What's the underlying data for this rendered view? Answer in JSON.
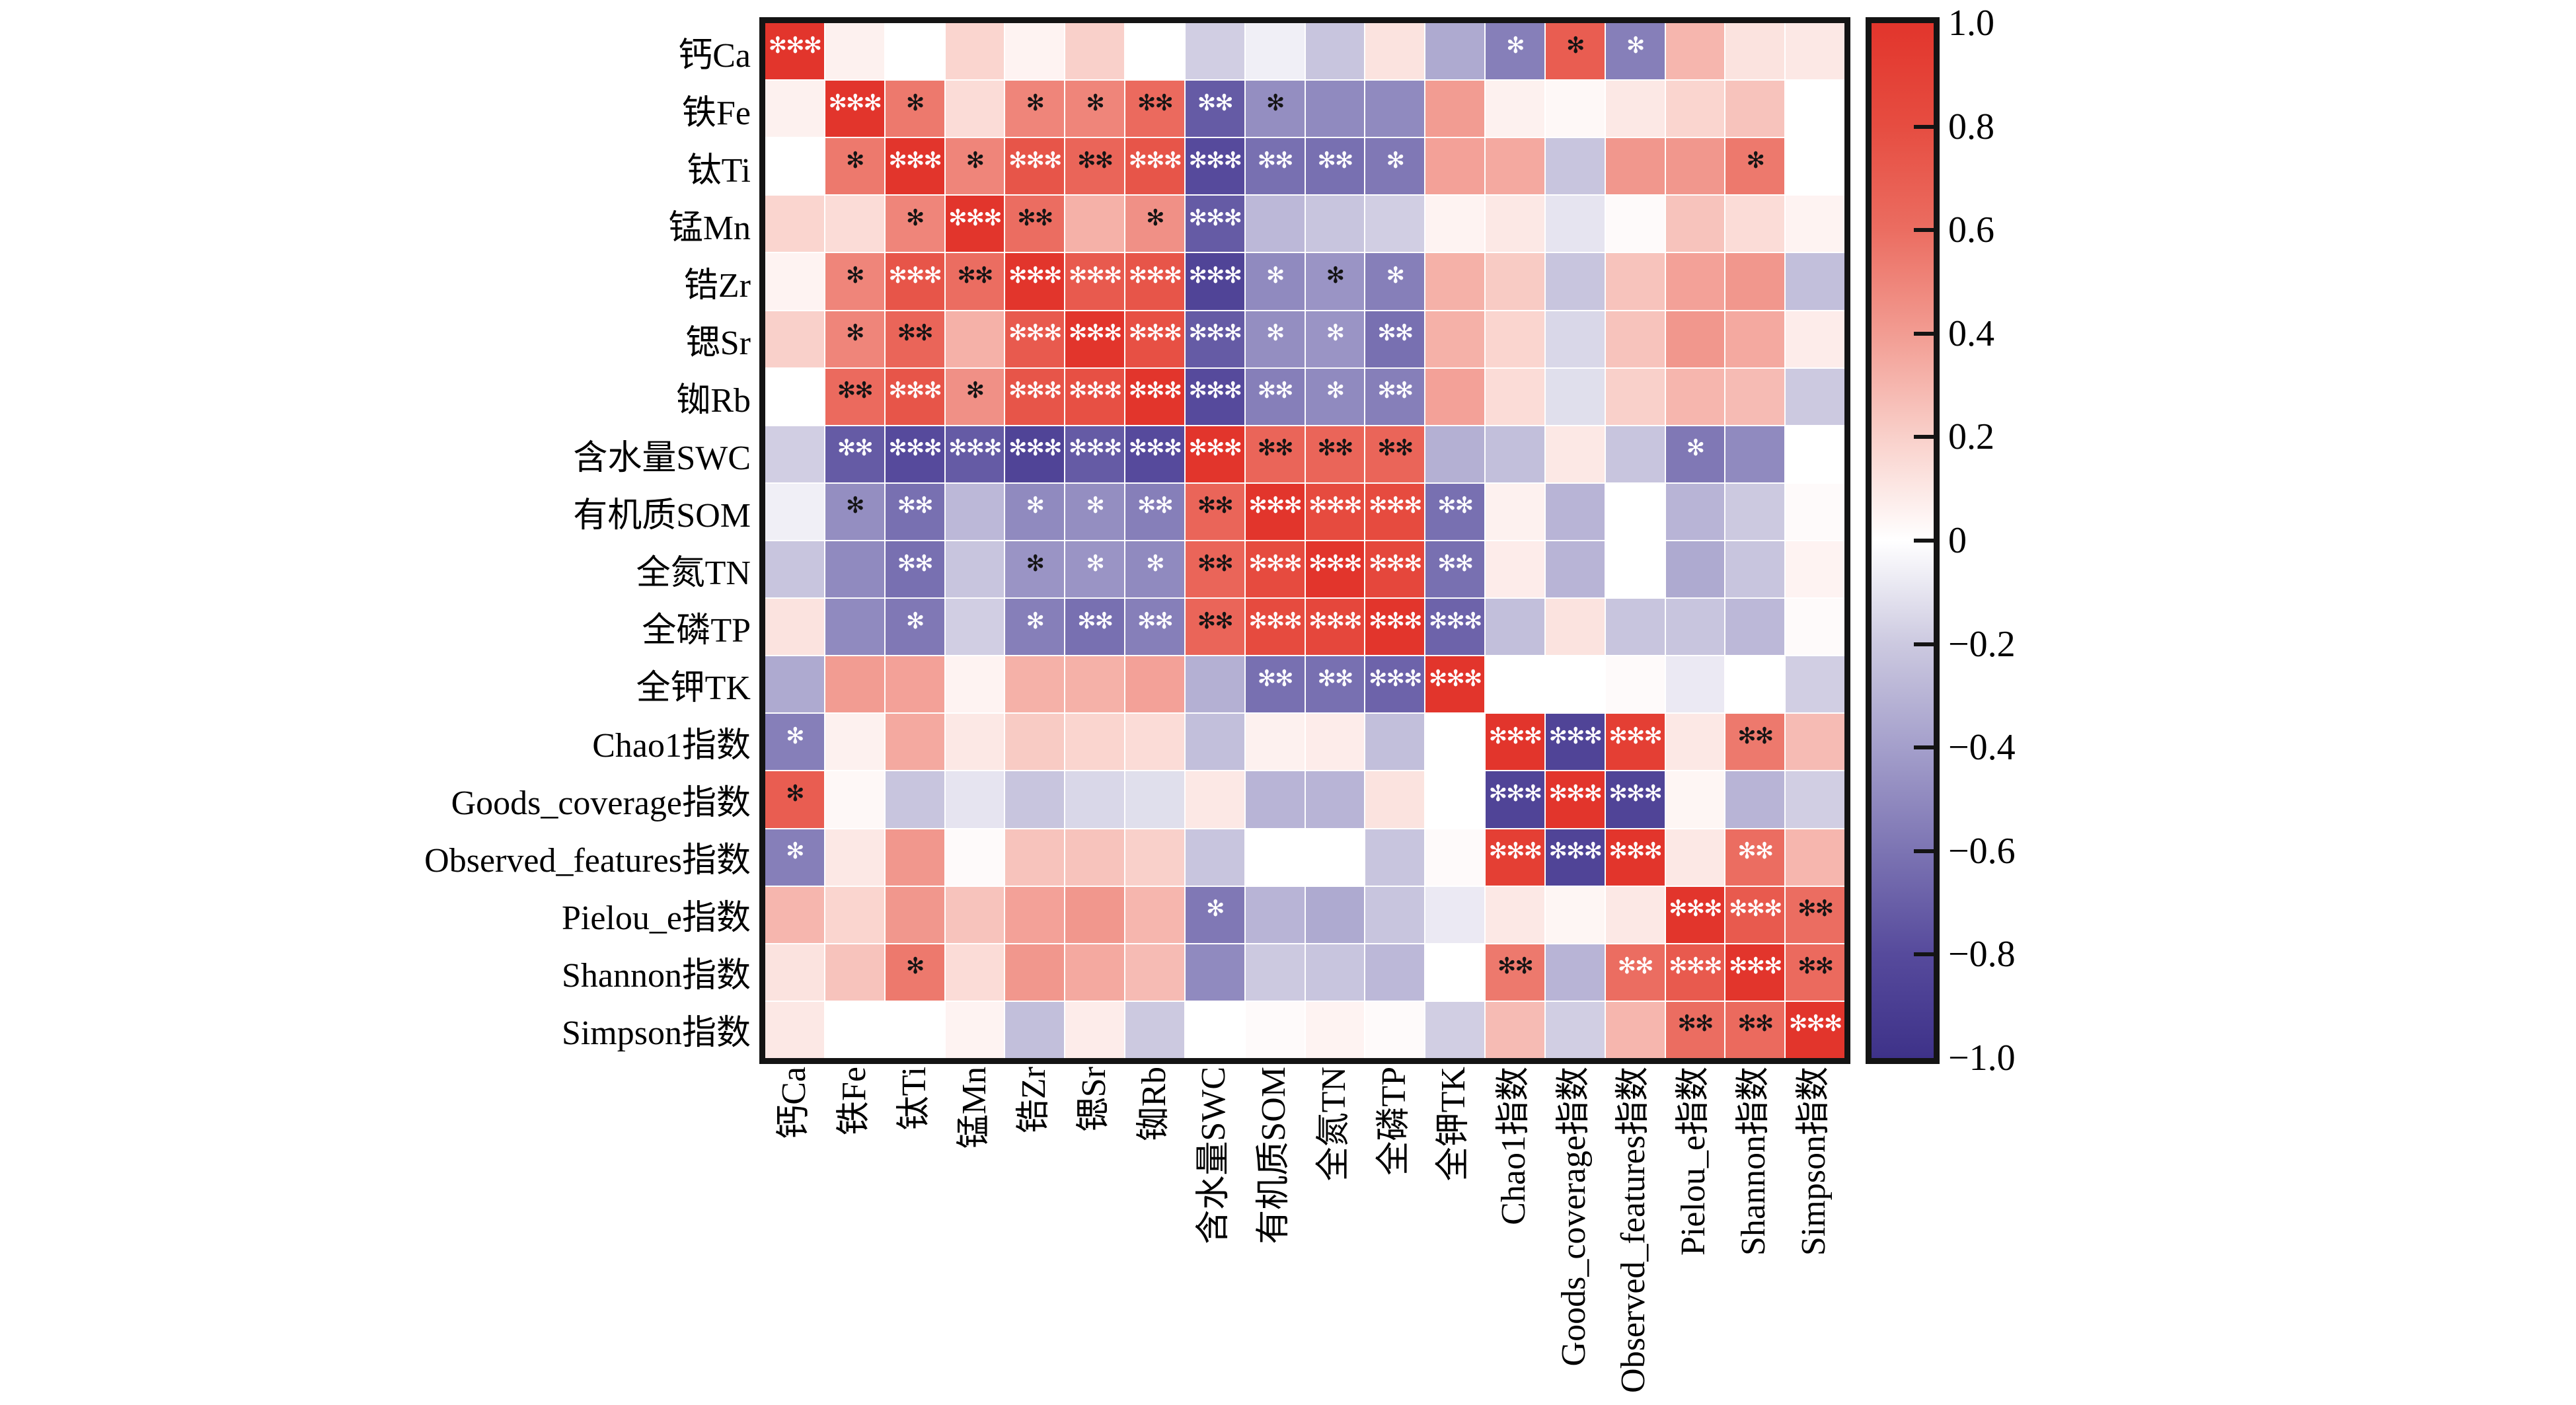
{
  "chart_data": {
    "type": "heatmap",
    "title": "",
    "legend_position": "right-colorbar",
    "grid": "white-lines",
    "star_glyph": "✻",
    "variables": [
      "钙Ca",
      "铁Fe",
      "钛Ti",
      "锰Mn",
      "锆Zr",
      "锶Sr",
      "铷Rb",
      "含水量SWC",
      "有机质SOM",
      "全氮TN",
      "全磷TP",
      "全钾TK",
      "Chao1指数",
      "Goods_coverage指数",
      "Observed_features指数",
      "Pielou_e指数",
      "Shannon指数",
      "Simpson指数"
    ],
    "matrix": [
      [
        1,
        0.06,
        0,
        0.18,
        0.05,
        0.2,
        0,
        -0.18,
        -0.06,
        -0.22,
        0.12,
        -0.35,
        -0.55,
        0.7,
        -0.55,
        0.3,
        0.12,
        0.1
      ],
      [
        0.06,
        1,
        0.55,
        0.15,
        0.5,
        0.5,
        0.62,
        -0.72,
        -0.48,
        -0.5,
        -0.5,
        0.4,
        0.06,
        0.03,
        0.1,
        0.18,
        0.25,
        0
      ],
      [
        0,
        0.55,
        1,
        0.5,
        0.75,
        0.65,
        0.75,
        -0.8,
        -0.62,
        -0.62,
        -0.58,
        0.38,
        0.35,
        -0.22,
        0.42,
        0.42,
        0.55,
        0
      ],
      [
        0.18,
        0.15,
        0.5,
        1,
        0.6,
        0.32,
        0.45,
        -0.72,
        -0.28,
        -0.22,
        -0.18,
        0.05,
        0.1,
        -0.1,
        0.02,
        0.25,
        0.15,
        0.05
      ],
      [
        0.05,
        0.5,
        0.75,
        0.6,
        1,
        0.72,
        0.75,
        -0.85,
        -0.5,
        -0.45,
        -0.55,
        0.32,
        0.22,
        -0.22,
        0.25,
        0.38,
        0.42,
        -0.25
      ],
      [
        0.2,
        0.5,
        0.65,
        0.32,
        0.72,
        1,
        0.78,
        -0.72,
        -0.48,
        -0.45,
        -0.62,
        0.32,
        0.18,
        -0.15,
        0.25,
        0.42,
        0.35,
        0.08
      ],
      [
        0,
        0.62,
        0.75,
        0.45,
        0.75,
        0.78,
        1,
        -0.8,
        -0.55,
        -0.5,
        -0.55,
        0.38,
        0.15,
        -0.12,
        0.2,
        0.3,
        0.28,
        -0.2
      ],
      [
        -0.18,
        -0.72,
        -0.8,
        -0.72,
        -0.85,
        -0.72,
        -0.8,
        1,
        0.65,
        0.65,
        0.65,
        -0.32,
        -0.25,
        0.1,
        -0.22,
        -0.58,
        -0.5,
        0
      ],
      [
        -0.06,
        -0.48,
        -0.62,
        -0.28,
        -0.5,
        -0.48,
        -0.55,
        0.65,
        1,
        0.82,
        0.82,
        -0.62,
        0.06,
        -0.3,
        0,
        -0.3,
        -0.2,
        0.02
      ],
      [
        -0.22,
        -0.5,
        -0.62,
        -0.22,
        -0.45,
        -0.45,
        -0.5,
        0.65,
        0.82,
        1,
        0.85,
        -0.62,
        0.08,
        -0.3,
        0,
        -0.35,
        -0.22,
        0.05
      ],
      [
        0.12,
        -0.5,
        -0.58,
        -0.18,
        -0.55,
        -0.62,
        -0.55,
        0.65,
        0.82,
        0.85,
        1,
        -0.68,
        -0.25,
        0.12,
        -0.22,
        -0.22,
        -0.28,
        0.02
      ],
      [
        -0.35,
        0.4,
        0.38,
        0.05,
        0.32,
        0.32,
        0.38,
        -0.32,
        -0.62,
        -0.62,
        -0.68,
        1,
        0,
        0,
        0.02,
        -0.08,
        0,
        -0.18
      ],
      [
        -0.55,
        0.06,
        0.35,
        0.1,
        0.22,
        0.18,
        0.15,
        -0.25,
        0.06,
        0.08,
        -0.25,
        0,
        1,
        -0.85,
        0.92,
        0.1,
        0.55,
        0.28
      ],
      [
        0.7,
        0.03,
        -0.22,
        -0.1,
        -0.22,
        -0.15,
        -0.12,
        0.1,
        -0.3,
        -0.3,
        0.12,
        0,
        -0.85,
        1,
        -0.85,
        0.04,
        -0.3,
        -0.18
      ],
      [
        -0.55,
        0.1,
        0.42,
        0.02,
        0.25,
        0.25,
        0.2,
        -0.22,
        0,
        0,
        -0.22,
        0.02,
        0.92,
        -0.85,
        1,
        0.1,
        0.6,
        0.3
      ],
      [
        0.3,
        0.18,
        0.42,
        0.25,
        0.38,
        0.42,
        0.3,
        -0.58,
        -0.3,
        -0.35,
        -0.22,
        -0.08,
        0.1,
        0.04,
        0.1,
        1,
        0.72,
        0.6
      ],
      [
        0.12,
        0.25,
        0.55,
        0.15,
        0.42,
        0.35,
        0.28,
        -0.5,
        -0.2,
        -0.22,
        -0.28,
        0,
        0.55,
        -0.3,
        0.6,
        0.72,
        1,
        0.62
      ],
      [
        0.1,
        0,
        0,
        0.05,
        -0.25,
        0.08,
        -0.2,
        0,
        0.02,
        0.05,
        0.02,
        -0.18,
        0.28,
        -0.18,
        0.3,
        0.6,
        0.62,
        1
      ]
    ],
    "significance": [
      [
        "3w",
        "",
        "",
        "",
        "",
        "",
        "",
        "",
        "",
        "",
        "",
        "",
        "1w",
        "1b",
        "1w",
        "",
        "",
        ""
      ],
      [
        "",
        "3w",
        "1b",
        "",
        "1b",
        "1b",
        "2b",
        "2w",
        "1b",
        "",
        "",
        "",
        "",
        "",
        "",
        "",
        "",
        ""
      ],
      [
        "",
        "1b",
        "3w",
        "1b",
        "3w",
        "2b",
        "3w",
        "3w",
        "2w",
        "2w",
        "1w",
        "",
        "",
        "",
        "",
        "",
        "1b",
        ""
      ],
      [
        "",
        "",
        "1b",
        "3w",
        "2b",
        "",
        "1b",
        "3w",
        "",
        "",
        "",
        "",
        "",
        "",
        "",
        "",
        "",
        ""
      ],
      [
        "",
        "1b",
        "3w",
        "2b",
        "3w",
        "3w",
        "3w",
        "3w",
        "1w",
        "1b",
        "1w",
        "",
        "",
        "",
        "",
        "",
        "",
        ""
      ],
      [
        "",
        "1b",
        "2b",
        "",
        "3w",
        "3w",
        "3w",
        "3w",
        "1w",
        "1w",
        "2w",
        "",
        "",
        "",
        "",
        "",
        "",
        ""
      ],
      [
        "",
        "2b",
        "3w",
        "1b",
        "3w",
        "3w",
        "3w",
        "3w",
        "2w",
        "1w",
        "2w",
        "",
        "",
        "",
        "",
        "",
        "",
        ""
      ],
      [
        "",
        "2w",
        "3w",
        "3w",
        "3w",
        "3w",
        "3w",
        "3w",
        "2b",
        "2b",
        "2b",
        "",
        "",
        "",
        "",
        "1w",
        "",
        ""
      ],
      [
        "",
        "1b",
        "2w",
        "",
        "1w",
        "1w",
        "2w",
        "2b",
        "3w",
        "3w",
        "3w",
        "2w",
        "",
        "",
        "",
        "",
        "",
        ""
      ],
      [
        "",
        "",
        "2w",
        "",
        "1b",
        "1w",
        "1w",
        "2b",
        "3w",
        "3w",
        "3w",
        "2w",
        "",
        "",
        "",
        "",
        "",
        ""
      ],
      [
        "",
        "",
        "1w",
        "",
        "1w",
        "2w",
        "2w",
        "2b",
        "3w",
        "3w",
        "3w",
        "3w",
        "",
        "",
        "",
        "",
        "",
        ""
      ],
      [
        "",
        "",
        "",
        "",
        "",
        "",
        "",
        "",
        "2w",
        "2w",
        "3w",
        "3w",
        "",
        "",
        "",
        "",
        "",
        ""
      ],
      [
        "1w",
        "",
        "",
        "",
        "",
        "",
        "",
        "",
        "",
        "",
        "",
        "",
        "3w",
        "3w",
        "3w",
        "",
        "2b",
        ""
      ],
      [
        "1b",
        "",
        "",
        "",
        "",
        "",
        "",
        "",
        "",
        "",
        "",
        "",
        "3w",
        "3w",
        "3w",
        "",
        "",
        ""
      ],
      [
        "1w",
        "",
        "",
        "",
        "",
        "",
        "",
        "",
        "",
        "",
        "",
        "",
        "3w",
        "3w",
        "3w",
        "",
        "2w",
        ""
      ],
      [
        "",
        "",
        "",
        "",
        "",
        "",
        "",
        "1w",
        "",
        "",
        "",
        "",
        "",
        "",
        "",
        "3w",
        "3w",
        "2b"
      ],
      [
        "",
        "",
        "1b",
        "",
        "",
        "",
        "",
        "",
        "",
        "",
        "",
        "",
        "2b",
        "",
        "2w",
        "3w",
        "3w",
        "2b"
      ],
      [
        "",
        "",
        "",
        "",
        "",
        "",
        "",
        "",
        "",
        "",
        "",
        "",
        "",
        "",
        "",
        "2b",
        "2b",
        "3w"
      ]
    ],
    "star_color_map": {
      "w": "#ffffff",
      "b": "#141414"
    },
    "colorbar": {
      "min": -1,
      "max": 1,
      "tick_labels": [
        "1.0",
        "0.8",
        "0.6",
        "0.4",
        "0.2",
        "0",
        "−0.2",
        "−0.4",
        "−0.6",
        "−0.8",
        "−1.0"
      ],
      "tick_values": [
        1,
        0.8,
        0.6,
        0.4,
        0.2,
        0,
        -0.2,
        -0.4,
        -0.6,
        -0.8,
        -1
      ],
      "gradient": [
        {
          "v": 1.0,
          "color": "#e2352c"
        },
        {
          "v": 0.8,
          "color": "#e64d41"
        },
        {
          "v": 0.6,
          "color": "#eb6d61"
        },
        {
          "v": 0.4,
          "color": "#f29c92"
        },
        {
          "v": 0.2,
          "color": "#f9d0ca"
        },
        {
          "v": 0.0,
          "color": "#ffffff"
        },
        {
          "v": -0.2,
          "color": "#ccc9e0"
        },
        {
          "v": -0.4,
          "color": "#a49fcb"
        },
        {
          "v": -0.6,
          "color": "#7c74b3"
        },
        {
          "v": -0.8,
          "color": "#564a9c"
        },
        {
          "v": -1.0,
          "color": "#3e3289"
        }
      ]
    }
  }
}
